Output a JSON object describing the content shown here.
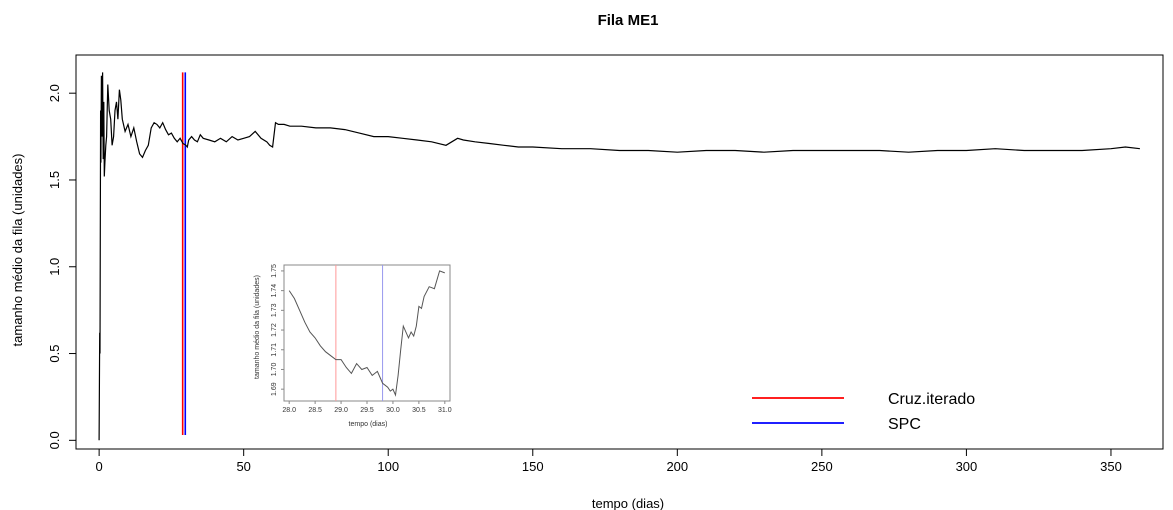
{
  "chart_data": [
    {
      "type": "line",
      "title": "Fila ME1",
      "xlabel": "tempo (dias)",
      "ylabel": "tamanho médio da fila (unidades)",
      "xlim": [
        -8,
        368
      ],
      "ylim": [
        -0.05,
        2.22
      ],
      "xticks": [
        0,
        50,
        100,
        150,
        200,
        250,
        300,
        350
      ],
      "yticks": [
        0.0,
        0.5,
        1.0,
        1.5,
        2.0
      ],
      "xtick_labels": [
        "0",
        "50",
        "100",
        "150",
        "200",
        "250",
        "300",
        "350"
      ],
      "ytick_labels": [
        "0.0",
        "0.5",
        "1.0",
        "1.5",
        "2.0"
      ],
      "grid": false,
      "series": [
        {
          "color": "#000000",
          "x": [
            0,
            0.2,
            0.3,
            0.5,
            0.6,
            0.8,
            1.0,
            1.2,
            1.4,
            1.6,
            1.8,
            2.0,
            2.3,
            2.6,
            3.0,
            3.5,
            4.0,
            4.5,
            5.0,
            5.5,
            6.0,
            6.5,
            7.0,
            7.5,
            8.0,
            9.0,
            10,
            11,
            12,
            13,
            14,
            15,
            16,
            17,
            18,
            19,
            20,
            21,
            22,
            23,
            24,
            25,
            26,
            27,
            28,
            29,
            30,
            30.5,
            31,
            32,
            33,
            34,
            35,
            36,
            38,
            40,
            42,
            44,
            46,
            48,
            50,
            52,
            54,
            56,
            58,
            59,
            60,
            61,
            62,
            64,
            66,
            70,
            75,
            80,
            85,
            90,
            95,
            100,
            105,
            110,
            115,
            120,
            122,
            124,
            126,
            130,
            135,
            140,
            145,
            150,
            160,
            170,
            180,
            190,
            200,
            210,
            220,
            230,
            240,
            250,
            260,
            270,
            280,
            290,
            300,
            310,
            320,
            330,
            340,
            350,
            355,
            360
          ],
          "y": [
            0.0,
            0.62,
            0.5,
            1.9,
            1.6,
            2.1,
            1.75,
            2.12,
            1.62,
            1.95,
            1.52,
            1.6,
            1.7,
            1.75,
            2.05,
            1.9,
            1.85,
            1.7,
            1.75,
            1.9,
            1.95,
            1.85,
            2.02,
            1.96,
            1.85,
            1.78,
            1.82,
            1.75,
            1.8,
            1.72,
            1.65,
            1.63,
            1.67,
            1.7,
            1.8,
            1.83,
            1.82,
            1.8,
            1.83,
            1.79,
            1.76,
            1.77,
            1.74,
            1.72,
            1.74,
            1.71,
            1.7,
            1.69,
            1.73,
            1.75,
            1.73,
            1.72,
            1.76,
            1.74,
            1.73,
            1.72,
            1.74,
            1.72,
            1.75,
            1.73,
            1.74,
            1.75,
            1.78,
            1.74,
            1.72,
            1.7,
            1.69,
            1.83,
            1.82,
            1.82,
            1.81,
            1.81,
            1.8,
            1.8,
            1.79,
            1.77,
            1.75,
            1.75,
            1.74,
            1.73,
            1.72,
            1.7,
            1.72,
            1.74,
            1.73,
            1.72,
            1.71,
            1.7,
            1.69,
            1.69,
            1.68,
            1.68,
            1.67,
            1.67,
            1.66,
            1.67,
            1.67,
            1.66,
            1.67,
            1.67,
            1.67,
            1.67,
            1.66,
            1.67,
            1.67,
            1.68,
            1.67,
            1.67,
            1.67,
            1.68,
            1.69,
            1.68
          ]
        }
      ],
      "vlines": [
        {
          "legend": "Cruz.iterado",
          "color": "#ff0000",
          "x": 28.9
        },
        {
          "legend": "SPC",
          "color": "#0000ff",
          "x": 29.8
        }
      ],
      "legend": {
        "placement": "bottom-right",
        "entries": [
          {
            "label": "Cruz.iterado",
            "color": "#ff0000"
          },
          {
            "label": "SPC",
            "color": "#0000ff"
          }
        ]
      }
    },
    {
      "type": "line",
      "role": "inset",
      "title": "",
      "xlabel": "tempo (dias)",
      "ylabel": "tamanho médio da fila (unidades)",
      "xlim": [
        27.9,
        31.1
      ],
      "ylim": [
        1.684,
        1.753
      ],
      "xticks": [
        28.0,
        28.5,
        29.0,
        29.5,
        30.0,
        30.5,
        31.0
      ],
      "yticks": [
        1.69,
        1.7,
        1.71,
        1.72,
        1.73,
        1.74,
        1.75
      ],
      "xtick_labels": [
        "28.0",
        "28.5",
        "29.0",
        "29.5",
        "30.0",
        "30.5",
        "31.0"
      ],
      "ytick_labels": [
        "1.69",
        "1.70",
        "1.71",
        "1.72",
        "1.73",
        "1.74",
        "1.75"
      ],
      "grid": false,
      "series": [
        {
          "color": "#555555",
          "x": [
            28.0,
            28.1,
            28.2,
            28.3,
            28.4,
            28.5,
            28.6,
            28.7,
            28.8,
            28.9,
            29.0,
            29.1,
            29.2,
            29.3,
            29.4,
            29.5,
            29.6,
            29.7,
            29.8,
            29.9,
            29.95,
            30.0,
            30.05,
            30.1,
            30.15,
            30.2,
            30.3,
            30.35,
            30.4,
            30.45,
            30.5,
            30.55,
            30.6,
            30.7,
            30.8,
            30.9,
            31.0
          ],
          "y": [
            1.74,
            1.736,
            1.73,
            1.724,
            1.719,
            1.716,
            1.712,
            1.709,
            1.707,
            1.705,
            1.705,
            1.701,
            1.698,
            1.703,
            1.7,
            1.701,
            1.697,
            1.699,
            1.693,
            1.691,
            1.689,
            1.69,
            1.687,
            1.697,
            1.71,
            1.722,
            1.716,
            1.719,
            1.717,
            1.722,
            1.732,
            1.731,
            1.737,
            1.742,
            1.741,
            1.75,
            1.749
          ]
        }
      ],
      "vlines": [
        {
          "legend": "Cruz.iterado",
          "color": "#ff9999",
          "x": 28.9
        },
        {
          "legend": "SPC",
          "color": "#9999ee",
          "x": 29.8
        }
      ]
    }
  ]
}
